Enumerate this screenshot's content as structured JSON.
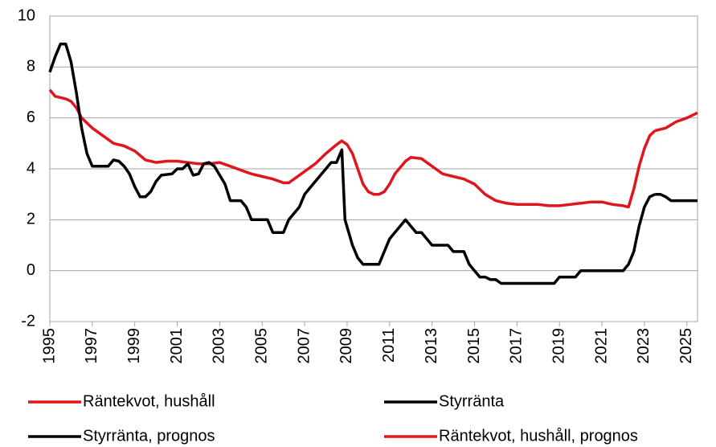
{
  "chart_data": {
    "type": "line",
    "xlim": [
      1995,
      2025.5
    ],
    "xticks": [
      1995,
      1997,
      1999,
      2001,
      2003,
      2005,
      2007,
      2009,
      2011,
      2013,
      2015,
      2017,
      2019,
      2021,
      2023,
      2025
    ],
    "ylim": [
      -2,
      10
    ],
    "yticks": [
      -2,
      0,
      2,
      4,
      6,
      8,
      10
    ],
    "grid": true,
    "legend": "bottom",
    "series": [
      {
        "name": "Räntekvot, hushåll",
        "color": "#e0161e",
        "x": [
          1995.0,
          1995.25,
          1995.75,
          1996.0,
          1996.25,
          1996.5,
          1997.0,
          1997.5,
          1998.0,
          1998.5,
          1999.0,
          1999.5,
          2000.0,
          2000.5,
          2001.0,
          2001.5,
          2002.0,
          2002.5,
          2003.0,
          2003.5,
          2004.0,
          2004.5,
          2005.0,
          2005.5,
          2006.0,
          2006.25,
          2006.5,
          2007.0,
          2007.5,
          2008.0,
          2008.5,
          2008.75,
          2009.0,
          2009.25,
          2009.5,
          2009.75,
          2010.0,
          2010.25,
          2010.5,
          2010.75,
          2011.0,
          2011.25,
          2011.75,
          2012.0,
          2012.5,
          2013.0,
          2013.5,
          2014.0,
          2014.5,
          2015.0,
          2015.5,
          2016.0,
          2016.5,
          2017.0,
          2018.0,
          2018.5,
          2019.0,
          2019.5,
          2020.0,
          2020.5,
          2021.0,
          2021.5,
          2022.0,
          2022.25,
          2022.5,
          2022.75,
          2023.0,
          2023.25,
          2023.5
        ],
        "values": [
          7.1,
          6.85,
          6.75,
          6.65,
          6.4,
          6.0,
          5.6,
          5.3,
          5.0,
          4.9,
          4.7,
          4.35,
          4.25,
          4.3,
          4.3,
          4.25,
          4.2,
          4.2,
          4.25,
          4.1,
          3.95,
          3.8,
          3.7,
          3.6,
          3.45,
          3.45,
          3.6,
          3.9,
          4.2,
          4.6,
          4.95,
          5.1,
          4.95,
          4.6,
          4.0,
          3.4,
          3.1,
          3.0,
          3.0,
          3.1,
          3.4,
          3.8,
          4.3,
          4.45,
          4.4,
          4.1,
          3.8,
          3.7,
          3.6,
          3.4,
          3.0,
          2.75,
          2.65,
          2.6,
          2.6,
          2.55,
          2.55,
          2.6,
          2.65,
          2.7,
          2.7,
          2.6,
          2.55,
          2.5,
          3.2,
          4.1,
          4.8,
          5.3,
          5.5
        ]
      },
      {
        "name": "Styrränta",
        "color": "#000000",
        "x": [
          1995.0,
          1995.25,
          1995.5,
          1995.75,
          1996.0,
          1996.25,
          1996.5,
          1996.75,
          1997.0,
          1997.5,
          1997.75,
          1998.0,
          1998.25,
          1998.5,
          1998.75,
          1999.0,
          1999.25,
          1999.5,
          1999.75,
          2000.0,
          2000.25,
          2000.75,
          2001.0,
          2001.25,
          2001.5,
          2001.75,
          2002.0,
          2002.25,
          2002.5,
          2002.75,
          2003.0,
          2003.25,
          2003.5,
          2003.75,
          2004.0,
          2004.25,
          2004.5,
          2005.0,
          2005.25,
          2005.5,
          2005.75,
          2006.0,
          2006.25,
          2006.5,
          2006.75,
          2007.0,
          2007.5,
          2008.0,
          2008.25,
          2008.5,
          2008.75,
          2008.9,
          2009.25,
          2009.5,
          2009.75,
          2010.0,
          2010.5,
          2010.75,
          2011.0,
          2011.5,
          2011.75,
          2012.0,
          2012.25,
          2012.5,
          2012.75,
          2013.0,
          2013.5,
          2013.75,
          2014.0,
          2014.5,
          2014.75,
          2015.0,
          2015.25,
          2015.5,
          2015.75,
          2016.0,
          2016.25,
          2018.75,
          2019.0,
          2019.75,
          2020.0,
          2022.0,
          2022.25,
          2022.5,
          2022.75,
          2023.0,
          2023.25,
          2023.5
        ],
        "values": [
          7.8,
          8.4,
          8.9,
          8.9,
          8.2,
          7.0,
          5.6,
          4.6,
          4.1,
          4.1,
          4.1,
          4.35,
          4.3,
          4.1,
          3.8,
          3.3,
          2.9,
          2.9,
          3.1,
          3.5,
          3.75,
          3.8,
          4.0,
          4.0,
          4.2,
          3.75,
          3.8,
          4.2,
          4.25,
          4.1,
          3.75,
          3.4,
          2.75,
          2.75,
          2.75,
          2.5,
          2.0,
          2.0,
          2.0,
          1.5,
          1.5,
          1.5,
          2.0,
          2.25,
          2.5,
          3.0,
          3.5,
          4.0,
          4.25,
          4.25,
          4.75,
          2.0,
          1.0,
          0.5,
          0.25,
          0.25,
          0.25,
          0.75,
          1.25,
          1.75,
          2.0,
          1.75,
          1.5,
          1.5,
          1.25,
          1.0,
          1.0,
          1.0,
          0.75,
          0.75,
          0.25,
          0.0,
          -0.25,
          -0.25,
          -0.35,
          -0.35,
          -0.5,
          -0.5,
          -0.25,
          -0.25,
          0,
          0,
          0.25,
          0.75,
          1.75,
          2.5,
          2.9,
          3.0
        ]
      },
      {
        "name": "Styrränta, prognos",
        "color": "#000000",
        "x": [
          2023.5,
          2023.75,
          2024.0,
          2024.25,
          2025.5
        ],
        "values": [
          3.0,
          3.0,
          2.9,
          2.75,
          2.75
        ]
      },
      {
        "name": "Räntekvot, hushåll, prognos",
        "color": "#e0161e",
        "x": [
          2023.5,
          2024.0,
          2024.5,
          2025.0,
          2025.5
        ],
        "values": [
          5.5,
          5.6,
          5.85,
          6.0,
          6.2
        ]
      }
    ]
  }
}
